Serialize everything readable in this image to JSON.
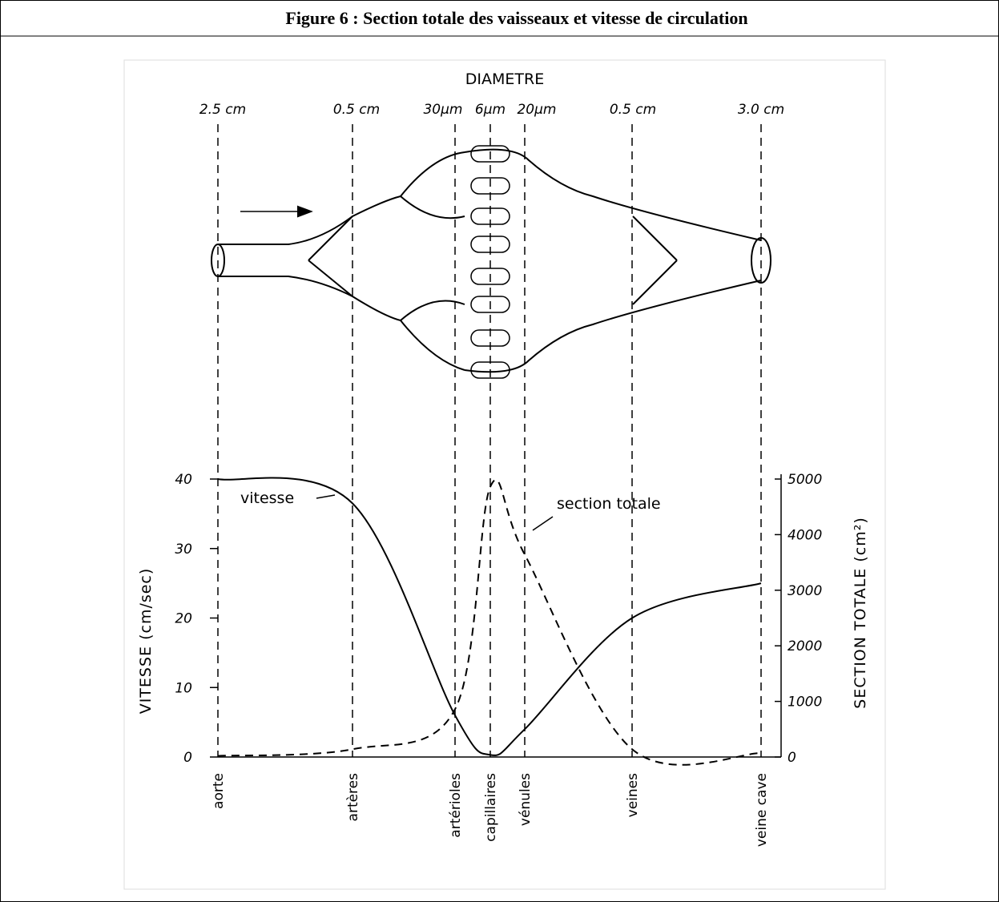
{
  "header": {
    "title": "Figure 6 : Section totale des vaisseaux et vitesse de circulation"
  },
  "diagram": {
    "title": "DIAMETRE",
    "diameter_labels": [
      "2.5 cm",
      "0.5 cm",
      "30µm",
      "6µm",
      "20µm",
      "0.5 cm",
      "3.0 cm"
    ]
  },
  "chart_data": {
    "type": "line",
    "categories": [
      "aorte",
      "artères",
      "artérioles",
      "capillaires",
      "vénules",
      "veines",
      "veine cave"
    ],
    "y_label": "VITESSE (cm/sec)",
    "y2_label": "SECTION TOTALE (cm²)",
    "ylim": [
      0,
      40
    ],
    "yticks": [
      0,
      10,
      20,
      30,
      40
    ],
    "y2lim": [
      0,
      5000
    ],
    "y2ticks": [
      0,
      1000,
      2000,
      3000,
      4000,
      5000
    ],
    "series": [
      {
        "name": "vitesse",
        "color": "#000000",
        "style": "solid",
        "values": [
          40,
          36.5,
          6,
          0.3,
          4,
          20,
          25
        ]
      },
      {
        "name": "section totale",
        "color": "#000000",
        "style": "dashed",
        "axis": "y2",
        "values": [
          20,
          140,
          860,
          4860,
          3640,
          140,
          70
        ]
      }
    ]
  }
}
